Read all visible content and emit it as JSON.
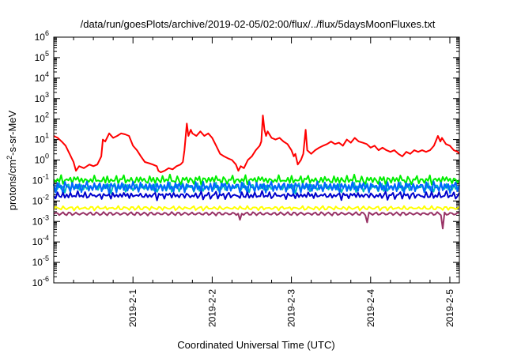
{
  "chart_data": {
    "type": "line",
    "title": "/data/run/goesPlots/archive/2019-02-05/02:00/flux/../flux/5daysMoonFluxes.txt",
    "xlabel": "Coordinated Universal Time (UTC)",
    "ylabel": "protons/cm²-s-sr-MeV",
    "ylabel_parts": {
      "main": "protons/cm",
      "sup": "2",
      "rest": "-s-sr-MeV"
    },
    "yscale": "log",
    "ylim": [
      1e-06,
      1000000.0
    ],
    "xlim": [
      0,
      5.12
    ],
    "x_units": "days relative to 2019-02-01 00:00 UTC axis origin",
    "grid": false,
    "y_ticks": [
      {
        "base": "10",
        "exp": "6",
        "value": 1000000.0
      },
      {
        "base": "10",
        "exp": "5",
        "value": 100000.0
      },
      {
        "base": "10",
        "exp": "4",
        "value": 10000.0
      },
      {
        "base": "10",
        "exp": "3",
        "value": 1000.0
      },
      {
        "base": "10",
        "exp": "2",
        "value": 100.0
      },
      {
        "base": "10",
        "exp": "1",
        "value": 10.0
      },
      {
        "base": "10",
        "exp": "0",
        "value": 1.0
      },
      {
        "base": "10",
        "exp": "-1",
        "value": 0.1
      },
      {
        "base": "10",
        "exp": "-2",
        "value": 0.01
      },
      {
        "base": "10",
        "exp": "-3",
        "value": 0.001
      },
      {
        "base": "10",
        "exp": "-4",
        "value": 0.0001
      },
      {
        "base": "10",
        "exp": "-5",
        "value": 1e-05
      },
      {
        "base": "10",
        "exp": "-6",
        "value": 1e-06
      }
    ],
    "x_ticks": [
      {
        "label": "2019-2-1",
        "x": 1
      },
      {
        "label": "2019-2-2",
        "x": 2
      },
      {
        "label": "2019-2-3",
        "x": 3
      },
      {
        "label": "2019-2-4",
        "x": 4
      },
      {
        "label": "2019-2-5",
        "x": 5
      }
    ],
    "series": [
      {
        "color": "#ff0000",
        "points": [
          [
            0,
            15
          ],
          [
            0.05,
            12
          ],
          [
            0.1,
            8
          ],
          [
            0.15,
            5
          ],
          [
            0.2,
            2
          ],
          [
            0.25,
            0.8
          ],
          [
            0.28,
            0.3
          ],
          [
            0.32,
            0.5
          ],
          [
            0.38,
            0.4
          ],
          [
            0.45,
            0.6
          ],
          [
            0.5,
            0.5
          ],
          [
            0.55,
            0.6
          ],
          [
            0.6,
            1.5
          ],
          [
            0.62,
            10
          ],
          [
            0.65,
            8
          ],
          [
            0.7,
            20
          ],
          [
            0.75,
            12
          ],
          [
            0.8,
            15
          ],
          [
            0.85,
            20
          ],
          [
            0.9,
            18
          ],
          [
            0.95,
            15
          ],
          [
            1.0,
            5
          ],
          [
            1.05,
            3
          ],
          [
            1.1,
            1.5
          ],
          [
            1.15,
            0.8
          ],
          [
            1.2,
            0.7
          ],
          [
            1.25,
            0.6
          ],
          [
            1.3,
            0.5
          ],
          [
            1.32,
            0.3
          ],
          [
            1.35,
            0.25
          ],
          [
            1.4,
            0.3
          ],
          [
            1.45,
            0.4
          ],
          [
            1.5,
            0.35
          ],
          [
            1.55,
            0.5
          ],
          [
            1.6,
            0.6
          ],
          [
            1.63,
            0.8
          ],
          [
            1.65,
            3
          ],
          [
            1.68,
            60
          ],
          [
            1.7,
            15
          ],
          [
            1.73,
            30
          ],
          [
            1.75,
            20
          ],
          [
            1.8,
            15
          ],
          [
            1.85,
            25
          ],
          [
            1.9,
            15
          ],
          [
            1.95,
            20
          ],
          [
            2.0,
            12
          ],
          [
            2.05,
            5
          ],
          [
            2.1,
            2
          ],
          [
            2.15,
            1.5
          ],
          [
            2.2,
            1.2
          ],
          [
            2.25,
            1
          ],
          [
            2.3,
            0.6
          ],
          [
            2.33,
            0.3
          ],
          [
            2.36,
            0.5
          ],
          [
            2.4,
            0.4
          ],
          [
            2.45,
            1
          ],
          [
            2.5,
            1.5
          ],
          [
            2.55,
            3
          ],
          [
            2.6,
            5
          ],
          [
            2.62,
            8
          ],
          [
            2.64,
            150
          ],
          [
            2.66,
            30
          ],
          [
            2.68,
            15
          ],
          [
            2.7,
            25
          ],
          [
            2.75,
            12
          ],
          [
            2.8,
            10
          ],
          [
            2.85,
            12
          ],
          [
            2.9,
            8
          ],
          [
            2.95,
            6
          ],
          [
            3.0,
            3
          ],
          [
            3.03,
            1.5
          ],
          [
            3.05,
            2
          ],
          [
            3.08,
            0.6
          ],
          [
            3.12,
            1
          ],
          [
            3.15,
            2
          ],
          [
            3.18,
            30
          ],
          [
            3.2,
            3
          ],
          [
            3.25,
            2
          ],
          [
            3.3,
            3
          ],
          [
            3.35,
            4
          ],
          [
            3.4,
            5
          ],
          [
            3.45,
            6
          ],
          [
            3.5,
            8
          ],
          [
            3.55,
            6
          ],
          [
            3.6,
            7
          ],
          [
            3.65,
            5
          ],
          [
            3.7,
            10
          ],
          [
            3.75,
            7
          ],
          [
            3.8,
            12
          ],
          [
            3.85,
            8
          ],
          [
            3.9,
            7
          ],
          [
            3.95,
            6
          ],
          [
            4.0,
            4
          ],
          [
            4.05,
            5
          ],
          [
            4.1,
            3
          ],
          [
            4.15,
            4
          ],
          [
            4.2,
            3
          ],
          [
            4.25,
            2.5
          ],
          [
            4.3,
            3
          ],
          [
            4.35,
            2
          ],
          [
            4.4,
            1.5
          ],
          [
            4.45,
            2.5
          ],
          [
            4.5,
            2
          ],
          [
            4.55,
            3
          ],
          [
            4.6,
            2.5
          ],
          [
            4.65,
            3
          ],
          [
            4.7,
            2.5
          ],
          [
            4.75,
            3
          ],
          [
            4.8,
            5
          ],
          [
            4.85,
            15
          ],
          [
            4.88,
            8
          ],
          [
            4.9,
            12
          ],
          [
            4.95,
            6
          ],
          [
            5.0,
            5
          ],
          [
            5.05,
            3
          ],
          [
            5.1,
            2.5
          ],
          [
            5.12,
            2
          ]
        ]
      },
      {
        "color": "#00ee00",
        "base": 0.1,
        "noise": [
          1.0,
          0.8,
          1.4,
          0.9,
          1.6,
          0.7,
          1.2,
          1.1,
          0.9,
          1.5,
          0.8,
          1.3,
          1.0,
          1.7,
          0.9,
          1.1,
          0.8,
          1.4,
          1.0,
          0.75,
          1.25,
          0.95,
          1.6,
          0.85,
          1.15
        ]
      },
      {
        "color": "#00bbbb",
        "base": 0.045,
        "noise": [
          1.2,
          0.7,
          1.0,
          1.5,
          0.8,
          1.3,
          0.6,
          1.1,
          1.4,
          0.9,
          1.2,
          0.8,
          1.0,
          1.6,
          0.7,
          1.2,
          0.9,
          1.3,
          0.75,
          1.1,
          1.4,
          0.85,
          1.0,
          1.25,
          0.9
        ]
      },
      {
        "color": "#0066ff",
        "base": 0.05,
        "noise": [
          1.3,
          0.6,
          1.5,
          0.8,
          1.2,
          0.5,
          1.6,
          0.9,
          1.1,
          0.6,
          1.4,
          0.7,
          1.5,
          0.8,
          1.2,
          0.55,
          1.35,
          0.9,
          1.6,
          0.7,
          1.2,
          0.6,
          1.4,
          0.85,
          1.1
        ]
      },
      {
        "color": "#0000cc",
        "base": 0.018,
        "noise": [
          1.1,
          0.8,
          1.3,
          0.9,
          1.0,
          1.4,
          0.7,
          1.2,
          0.95,
          1.3,
          0.8,
          1.1,
          1.0,
          1.5,
          0.85,
          1.2,
          0.9,
          1.3,
          0.8,
          1.05,
          1.25,
          0.9,
          1.15,
          1.0,
          0.95
        ]
      },
      {
        "color": "#ffff00",
        "base": 0.0045,
        "noise": [
          1.0,
          1.1,
          0.9,
          1.05,
          0.95,
          1.1,
          0.9,
          1.0,
          1.05,
          0.95,
          1.1,
          0.9,
          1.0,
          1.05,
          0.95,
          1.1,
          0.9,
          1.0,
          1.05,
          0.95,
          1.0,
          1.1,
          0.9,
          1.0,
          1.05
        ]
      },
      {
        "color": "#993366",
        "base": 0.0024,
        "noise": [
          1.0,
          0.95,
          1.05,
          1.0,
          0.97,
          1.03,
          1.0,
          0.96,
          1.04,
          1.0,
          0.98,
          1.02,
          1.0,
          0.95,
          1.05,
          1.0,
          0.97,
          1.03,
          1.0,
          0.96,
          1.04,
          1.0,
          0.98,
          1.02,
          1.0
        ],
        "dips": [
          [
            2.35,
            0.0012
          ],
          [
            3.95,
            0.0009
          ],
          [
            4.9,
            0.00045
          ]
        ]
      }
    ]
  }
}
